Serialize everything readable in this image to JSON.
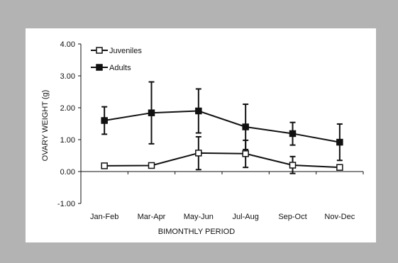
{
  "chart_data": {
    "type": "line",
    "xlabel": "BIMONTHLY PERIOD",
    "ylabel": "OVARY WEIGHT (g)",
    "ylim": [
      -1.0,
      4.0
    ],
    "yticks": [
      "4.00",
      "3.00",
      "2.00",
      "1.00",
      "0.00",
      "-1.00"
    ],
    "categories": [
      "Jan-Feb",
      "Mar-Apr",
      "May-Jun",
      "Jul-Aug",
      "Sep-Oct",
      "Nov-Dec"
    ],
    "series": [
      {
        "name": "Juveniles",
        "marker": "open-square",
        "values": [
          0.18,
          0.19,
          0.58,
          0.56,
          0.2,
          0.13
        ],
        "err_low": [
          0.18,
          0.19,
          0.06,
          0.13,
          -0.06,
          0.13
        ],
        "err_high": [
          0.18,
          0.19,
          1.09,
          0.98,
          0.47,
          0.13
        ]
      },
      {
        "name": "Adults",
        "marker": "filled-square",
        "values": [
          1.6,
          1.84,
          1.9,
          1.4,
          1.19,
          0.92
        ],
        "err_low": [
          1.17,
          0.87,
          1.21,
          0.69,
          0.83,
          0.35
        ],
        "err_high": [
          2.03,
          2.81,
          2.59,
          2.11,
          1.54,
          1.49
        ]
      }
    ],
    "legend": "top-left",
    "grid": false,
    "background_color": "#b3b3b3",
    "plot_color": "#ffffff",
    "line_color": "#111111"
  }
}
